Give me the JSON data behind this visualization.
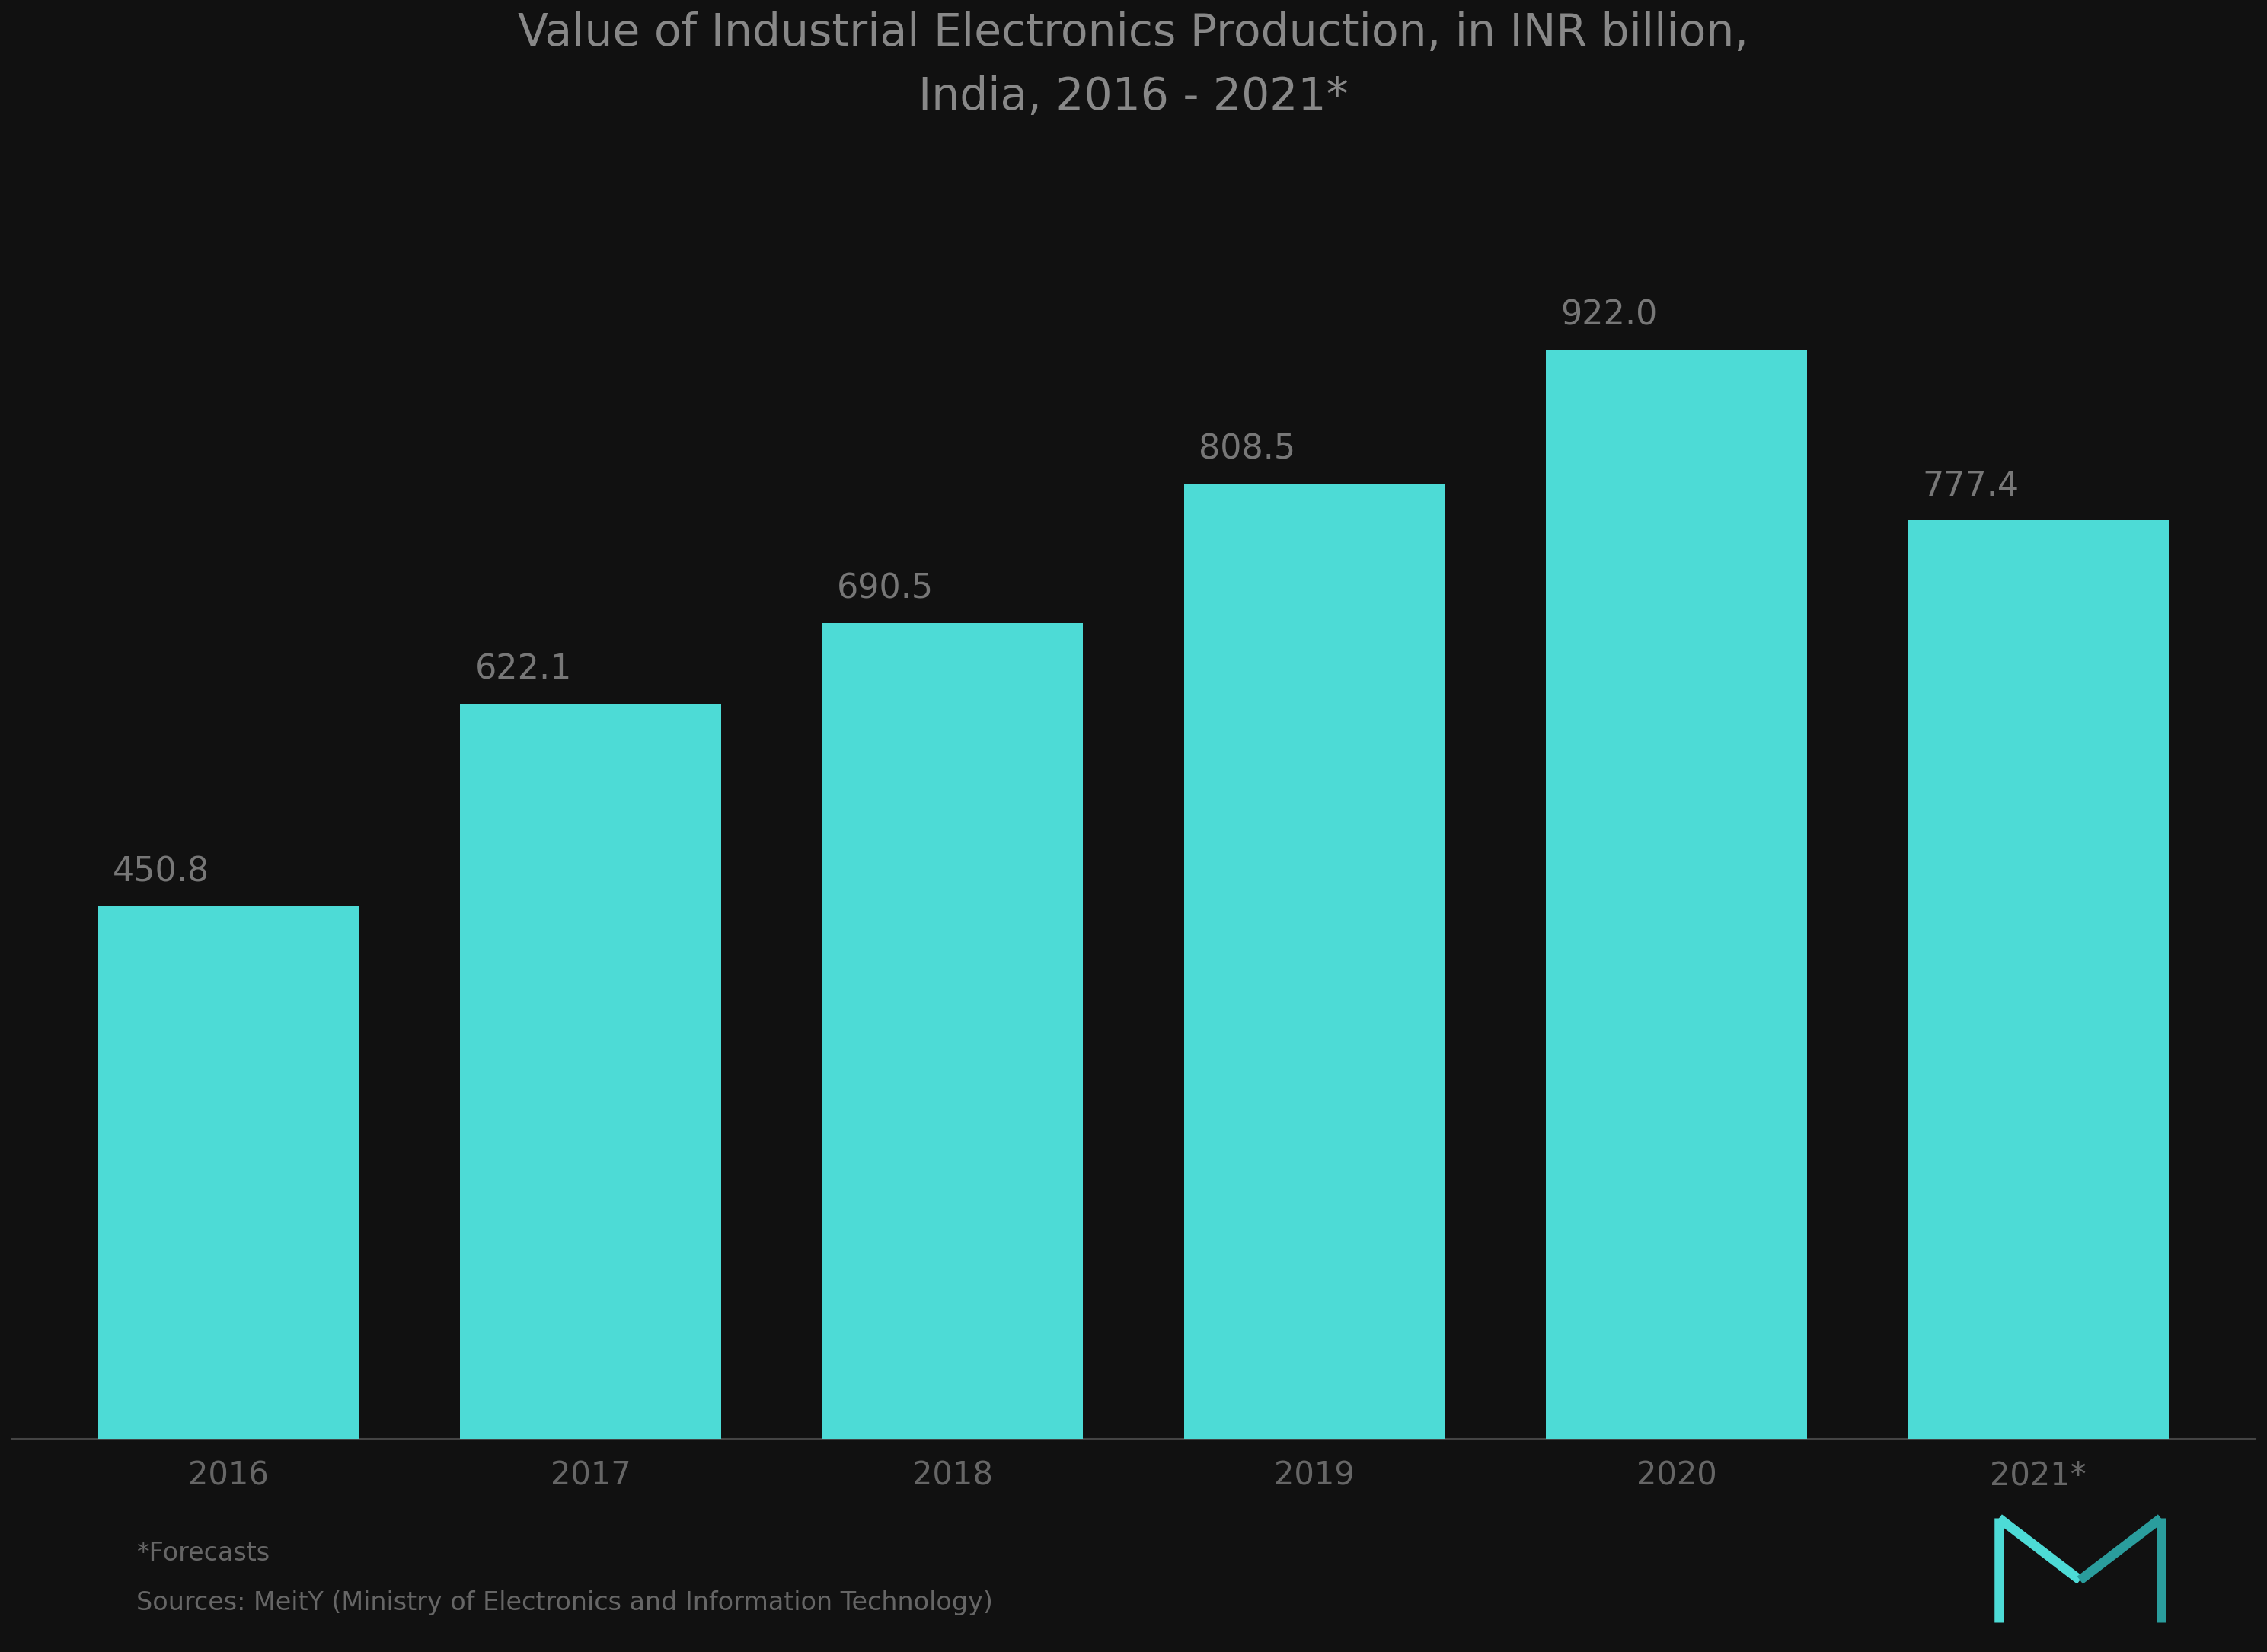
{
  "title_line1": "Value of Industrial Electronics Production, in INR billion,",
  "title_line2": "India, 2016 - 2021*",
  "categories": [
    "2016",
    "2017",
    "2018",
    "2019",
    "2020",
    "2021*"
  ],
  "values": [
    450.8,
    622.1,
    690.5,
    808.5,
    922.0,
    777.4
  ],
  "bar_color": "#4DDBD6",
  "background_color": "#111111",
  "title_color": "#888888",
  "label_color": "#777777",
  "tick_color": "#666666",
  "footnote_color": "#666666",
  "spine_color": "#444444",
  "footnote_line1": "*Forecasts",
  "footnote_line2": "Sources: MeitY (Ministry of Electronics and Information Technology)",
  "title_fontsize": 42,
  "label_fontsize": 32,
  "tick_fontsize": 30,
  "footnote_fontsize": 24,
  "ylim": [
    0,
    1080
  ],
  "bar_width": 0.72
}
